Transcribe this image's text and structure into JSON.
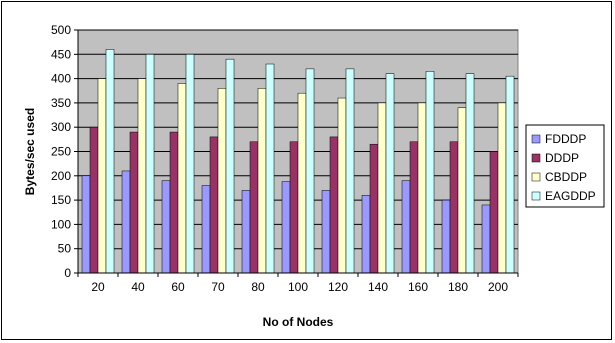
{
  "chart_data": {
    "type": "bar",
    "title": "",
    "xlabel": "No of Nodes",
    "ylabel": "Bytes/sec used",
    "ylim": [
      0,
      500
    ],
    "y_ticks": [
      0,
      50,
      100,
      150,
      200,
      250,
      300,
      350,
      400,
      450,
      500
    ],
    "grid": true,
    "legend_position": "right",
    "plot_background": "#c0c0c0",
    "categories": [
      "20",
      "40",
      "60",
      "70",
      "80",
      "100",
      "120",
      "140",
      "160",
      "180",
      "200"
    ],
    "series": [
      {
        "name": "FDDDP",
        "color": "#9999ff",
        "values": [
          200,
          210,
          190,
          180,
          170,
          188,
          170,
          160,
          190,
          150,
          140
        ]
      },
      {
        "name": "DDDP",
        "color": "#993366",
        "values": [
          300,
          290,
          290,
          280,
          270,
          270,
          280,
          265,
          270,
          270,
          250
        ]
      },
      {
        "name": "CBDDP",
        "color": "#ffffcc",
        "values": [
          400,
          400,
          390,
          380,
          380,
          370,
          360,
          350,
          350,
          340,
          350
        ]
      },
      {
        "name": "EAGDDP",
        "color": "#ccffff",
        "values": [
          460,
          450,
          450,
          440,
          430,
          420,
          420,
          410,
          415,
          410,
          405
        ]
      }
    ]
  }
}
